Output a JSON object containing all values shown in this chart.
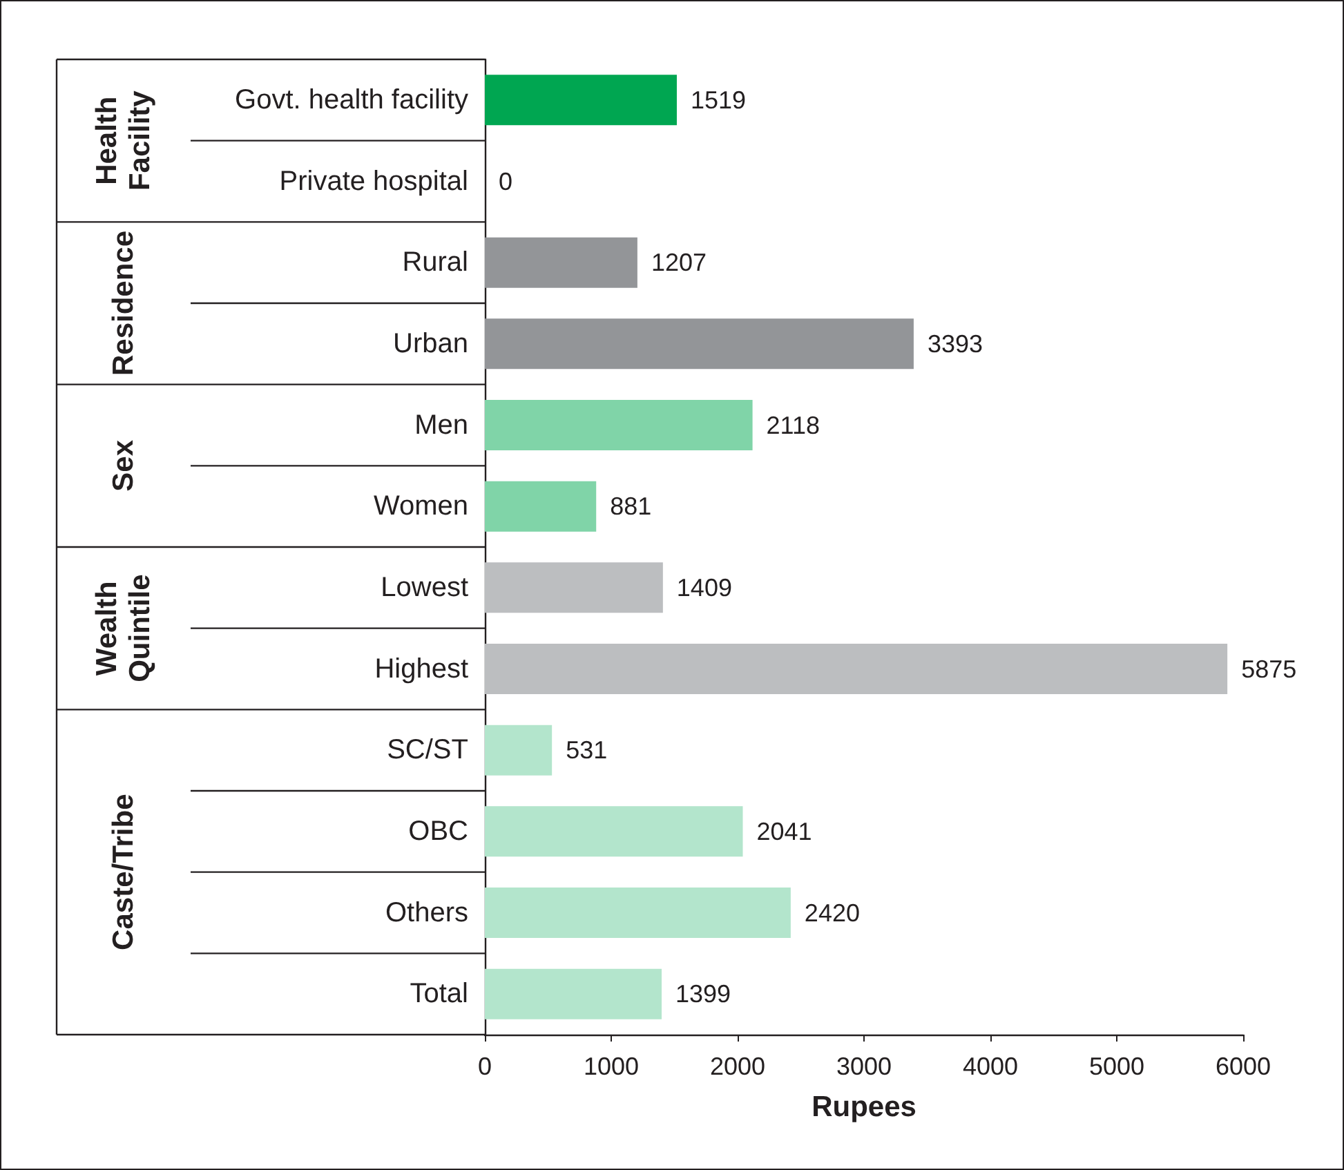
{
  "chart_data": {
    "type": "bar",
    "orientation": "horizontal",
    "xlabel": "Rupees",
    "categories": [
      "Govt. health facility",
      "Private hospital",
      "Rural",
      "Urban",
      "Men",
      "Women",
      "Lowest",
      "Highest",
      "SC/ST",
      "OBC",
      "Others",
      "Total"
    ],
    "values": [
      1519,
      0,
      1207,
      3393,
      2118,
      881,
      1409,
      5875,
      531,
      2041,
      2420,
      1399
    ],
    "colors": [
      "#00a651",
      "#00a651",
      "#939598",
      "#939598",
      "#80d4a8",
      "#80d4a8",
      "#bcbec0",
      "#bcbec0",
      "#b3e5cc",
      "#b3e5cc",
      "#b3e5cc",
      "#b3e5cc"
    ],
    "annotations": [
      "Health Facility",
      "Residence",
      "Sex",
      "Wealth Quintile",
      "Caste/Tribe"
    ],
    "xlim": [
      0,
      6000
    ],
    "xticks": [
      0,
      1000,
      2000,
      3000,
      4000,
      5000,
      6000
    ],
    "data_labels": true
  }
}
